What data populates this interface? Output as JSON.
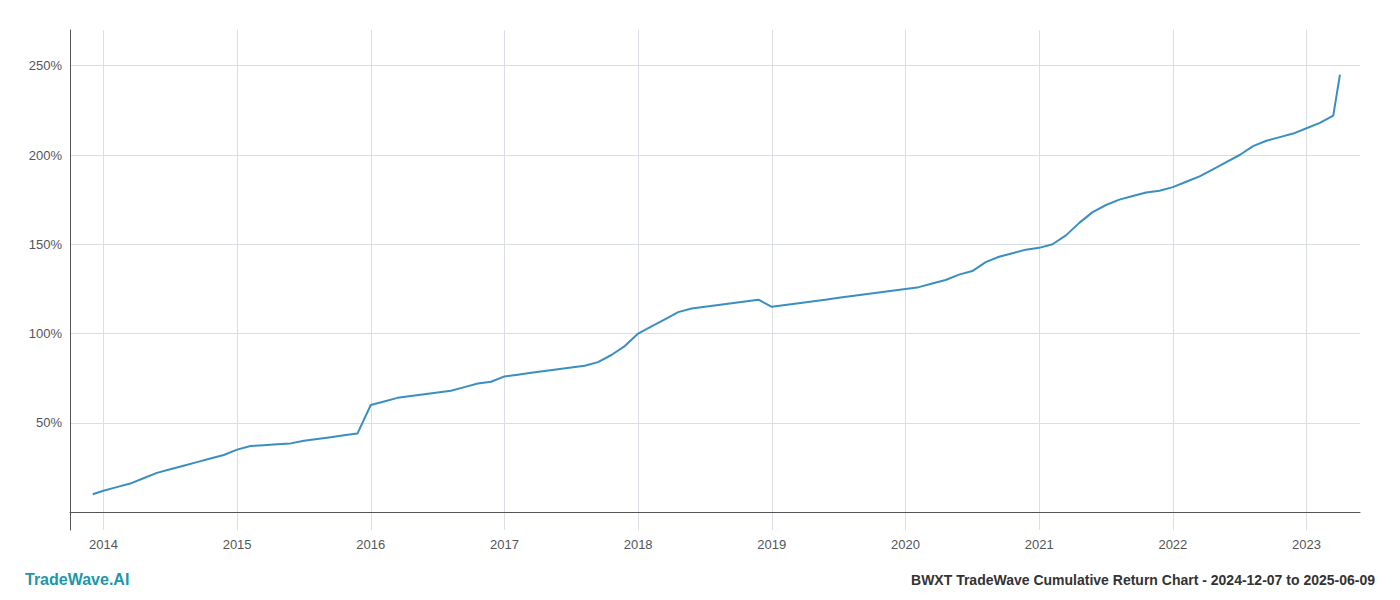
{
  "chart_data": {
    "type": "line",
    "title": "BWXT TradeWave Cumulative Return Chart - 2024-12-07 to 2025-06-09",
    "annotations": [
      "TradeWave.AI"
    ],
    "color": "#3a8fc0",
    "x": [
      2013.92,
      2014.0,
      2014.1,
      2014.2,
      2014.3,
      2014.4,
      2014.5,
      2014.6,
      2014.7,
      2014.8,
      2014.9,
      2015.0,
      2015.1,
      2015.2,
      2015.3,
      2015.4,
      2015.5,
      2015.6,
      2015.7,
      2015.8,
      2015.9,
      2016.0,
      2016.1,
      2016.2,
      2016.3,
      2016.4,
      2016.5,
      2016.6,
      2016.7,
      2016.8,
      2016.9,
      2017.0,
      2017.1,
      2017.2,
      2017.3,
      2017.4,
      2017.5,
      2017.6,
      2017.7,
      2017.8,
      2017.9,
      2018.0,
      2018.1,
      2018.2,
      2018.3,
      2018.4,
      2018.5,
      2018.6,
      2018.7,
      2018.8,
      2018.9,
      2019.0,
      2019.1,
      2019.2,
      2019.3,
      2019.4,
      2019.5,
      2019.6,
      2019.7,
      2019.8,
      2019.9,
      2020.0,
      2020.1,
      2020.2,
      2020.3,
      2020.4,
      2020.5,
      2020.6,
      2020.7,
      2020.8,
      2020.9,
      2021.0,
      2021.1,
      2021.2,
      2021.3,
      2021.4,
      2021.5,
      2021.6,
      2021.7,
      2021.8,
      2021.9,
      2022.0,
      2022.1,
      2022.2,
      2022.3,
      2022.4,
      2022.5,
      2022.6,
      2022.7,
      2022.8,
      2022.9,
      2023.0,
      2023.1,
      2023.2,
      2023.25
    ],
    "values": [
      10,
      12,
      14,
      16,
      19,
      22,
      24,
      26,
      28,
      30,
      32,
      35,
      37,
      37.5,
      38,
      38.5,
      40,
      41,
      42,
      43,
      44,
      60,
      62,
      64,
      65,
      66,
      67,
      68,
      70,
      72,
      73,
      76,
      77,
      78,
      79,
      80,
      81,
      82,
      84,
      88,
      93,
      100,
      104,
      108,
      112,
      114,
      115,
      116,
      117,
      118,
      119,
      115,
      116,
      117,
      118,
      119,
      120,
      121,
      122,
      123,
      124,
      125,
      126,
      128,
      130,
      133,
      135,
      140,
      143,
      145,
      147,
      148,
      150,
      155,
      162,
      168,
      172,
      175,
      177,
      179,
      180,
      182,
      185,
      188,
      192,
      196,
      200,
      205,
      208,
      210,
      212,
      215,
      218,
      222,
      245
    ],
    "xlim": [
      2013.75,
      2023.4
    ],
    "ylim": [
      -10,
      270
    ],
    "xticks": [
      2014,
      2015,
      2016,
      2017,
      2018,
      2019,
      2020,
      2021,
      2022,
      2023
    ],
    "yticks": [
      {
        "value": 50,
        "label": "50%"
      },
      {
        "value": 100,
        "label": "100%"
      },
      {
        "value": 150,
        "label": "150%"
      },
      {
        "value": 200,
        "label": "200%"
      },
      {
        "value": 250,
        "label": "250%"
      }
    ],
    "grid": true
  }
}
